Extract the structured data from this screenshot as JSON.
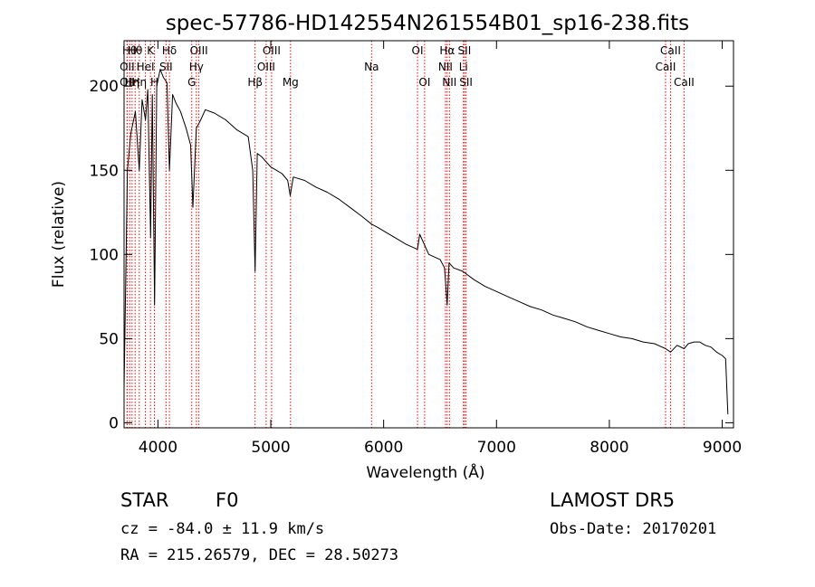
{
  "chart_data": {
    "type": "line",
    "title": "spec-57786-HD142554N261554B01_sp16-238.fits",
    "xlabel": "Wavelength (Å)",
    "ylabel": "Flux (relative)",
    "xlim": [
      3700,
      9100
    ],
    "ylim": [
      -3,
      227
    ],
    "x_ticks": [
      4000,
      5000,
      6000,
      7000,
      8000,
      9000
    ],
    "y_ticks": [
      0,
      50,
      100,
      150,
      200
    ],
    "grid": false,
    "line_color": "#000000",
    "marker_color": "#ff0000",
    "series": [
      {
        "x": [
          3700,
          3730,
          3760,
          3800,
          3835,
          3860,
          3890,
          3910,
          3935,
          3950,
          3970,
          3990,
          4020,
          4050,
          4080,
          4102,
          4130,
          4160,
          4200,
          4250,
          4290,
          4310,
          4340,
          4380,
          4420,
          4500,
          4600,
          4700,
          4800,
          4840,
          4861,
          4880,
          4920,
          4960,
          5000,
          5050,
          5100,
          5150,
          5172,
          5200,
          5300,
          5400,
          5500,
          5600,
          5700,
          5800,
          5893,
          5950,
          6000,
          6100,
          6200,
          6300,
          6320,
          6400,
          6500,
          6540,
          6563,
          6580,
          6620,
          6700,
          6800,
          6900,
          7000,
          7100,
          7200,
          7300,
          7400,
          7500,
          7600,
          7700,
          7800,
          7900,
          8000,
          8100,
          8200,
          8300,
          8400,
          8498,
          8542,
          8600,
          8662,
          8700,
          8750,
          8800,
          8850,
          8900,
          8950,
          9000,
          9030,
          9050
        ],
        "y": [
          20,
          150,
          172,
          185,
          150,
          192,
          180,
          198,
          110,
          195,
          70,
          200,
          210,
          205,
          202,
          150,
          195,
          190,
          185,
          175,
          165,
          128,
          175,
          180,
          186,
          184,
          180,
          174,
          170,
          150,
          90,
          160,
          158,
          155,
          152,
          150,
          148,
          144,
          135,
          146,
          144,
          140,
          137,
          133,
          128,
          123,
          118,
          116,
          114,
          110,
          106,
          103,
          112,
          100,
          97,
          92,
          70,
          95,
          92,
          90,
          85,
          81,
          78,
          75,
          72,
          69,
          67,
          64,
          62,
          60,
          57,
          55,
          53,
          51,
          50,
          48,
          47,
          44,
          42,
          46,
          44,
          47,
          48,
          48,
          46,
          45,
          42,
          40,
          38,
          5
        ]
      }
    ],
    "lines": [
      {
        "wl": 3727,
        "label": "OII",
        "row": 1
      },
      {
        "wl": 3727,
        "label": "OII",
        "row": 2
      },
      {
        "wl": 3750,
        "label": "Hθ",
        "row": 0
      },
      {
        "wl": 3771,
        "label": "Hη",
        "row": 2
      },
      {
        "wl": 3798,
        "label": "Hθ",
        "row": 0
      },
      {
        "wl": 3835,
        "label": "Hη",
        "row": 2
      },
      {
        "wl": 3889,
        "label": "HeI",
        "row": 1
      },
      {
        "wl": 3934,
        "label": "K",
        "row": 0
      },
      {
        "wl": 3969,
        "label": "H",
        "row": 2
      },
      {
        "wl": 4072,
        "label": "SII",
        "row": 1
      },
      {
        "wl": 4102,
        "label": "Hδ",
        "row": 0
      },
      {
        "wl": 4300,
        "label": "G",
        "row": 2
      },
      {
        "wl": 4340,
        "label": "Hγ",
        "row": 1
      },
      {
        "wl": 4363,
        "label": "OIII",
        "row": 0
      },
      {
        "wl": 4861,
        "label": "Hβ",
        "row": 2
      },
      {
        "wl": 4959,
        "label": "OIII",
        "row": 1
      },
      {
        "wl": 5007,
        "label": "OIII",
        "row": 0
      },
      {
        "wl": 5175,
        "label": "Mg",
        "row": 2
      },
      {
        "wl": 5893,
        "label": "Na",
        "row": 1
      },
      {
        "wl": 6300,
        "label": "OI",
        "row": 0
      },
      {
        "wl": 6363,
        "label": "OI",
        "row": 2
      },
      {
        "wl": 6548,
        "label": "NII",
        "row": 1
      },
      {
        "wl": 6563,
        "label": "Hα",
        "row": 0
      },
      {
        "wl": 6583,
        "label": "NII",
        "row": 2
      },
      {
        "wl": 6707,
        "label": "Li",
        "row": 1
      },
      {
        "wl": 6716,
        "label": "SII",
        "row": 0
      },
      {
        "wl": 6730,
        "label": "SII",
        "row": 2
      },
      {
        "wl": 8498,
        "label": "CaII",
        "row": 1
      },
      {
        "wl": 8542,
        "label": "CaII",
        "row": 0
      },
      {
        "wl": 8662,
        "label": "CaII",
        "row": 2
      }
    ]
  },
  "info": {
    "class_label": "STAR",
    "subclass": "F0",
    "survey": "LAMOST DR5",
    "cz": "cz = -84.0 ± 11.9 km/s",
    "obs_date": "Obs-Date: 20170201",
    "coords": "RA = 215.26579, DEC =  28.50273"
  }
}
